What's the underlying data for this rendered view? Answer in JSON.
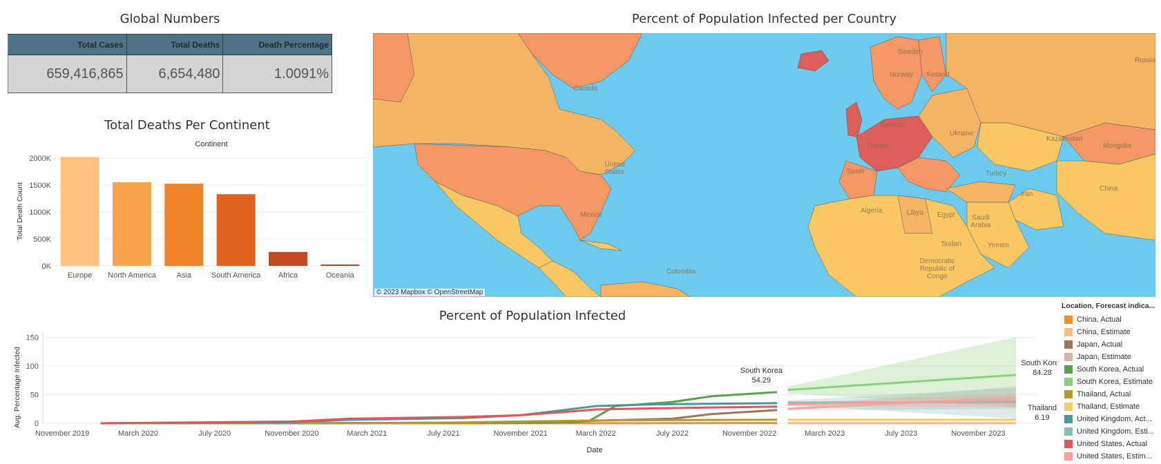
{
  "global": {
    "title": "Global Numbers",
    "headers": [
      "Total Cases",
      "Total Deaths",
      "Death Percentage"
    ],
    "values": [
      "659,416,865",
      "6,654,480",
      "1.0091%"
    ]
  },
  "continent_chart": {
    "title": "Total Deaths Per Continent",
    "subtitle": "Continent",
    "ylabel": "Total Death Count"
  },
  "map": {
    "title": "Percent of Population Infected per Country",
    "attribution": "© 2023 Mapbox  © OpenStreetMap",
    "labels": [
      "Canada",
      "United States",
      "Mexico",
      "Colombia",
      "Sweden",
      "Norway",
      "Finland",
      "France",
      "Spain",
      "German",
      "Ukraine",
      "Turkey",
      "Algeria",
      "Libya",
      "Egypt",
      "Saudi Arabia",
      "Sudan",
      "Yemen",
      "Iran",
      "Kazakhstan",
      "Mongolia",
      "China",
      "Russia",
      "Democratic Republic of Congo"
    ]
  },
  "line_chart": {
    "title": "Percent of Population Infected",
    "xlabel": "Date",
    "ylabel": "Avg. Percentage Infected",
    "annotations": [
      {
        "name": "South Korea",
        "value": "54.29"
      },
      {
        "name": "South Korea",
        "value": "84.28"
      },
      {
        "name": "Thailand",
        "value": "6.19"
      }
    ]
  },
  "legend": {
    "title": "Location, Forecast indica...",
    "items": [
      {
        "label": "China, Actual",
        "color": "#f28e2b"
      },
      {
        "label": "China, Estimate",
        "color": "#ffbe7d"
      },
      {
        "label": "Japan, Actual",
        "color": "#9c755f"
      },
      {
        "label": "Japan, Estimate",
        "color": "#d7b5a6"
      },
      {
        "label": "South Korea, Actual",
        "color": "#59a14f"
      },
      {
        "label": "South Korea, Estimate",
        "color": "#8cd17d"
      },
      {
        "label": "Thailand, Actual",
        "color": "#b6992d"
      },
      {
        "label": "Thailand, Estimate",
        "color": "#f1ce63"
      },
      {
        "label": "United Kingdom, Act...",
        "color": "#499894"
      },
      {
        "label": "United Kingdom, Esti...",
        "color": "#86bcb6"
      },
      {
        "label": "United States, Actual",
        "color": "#e15759"
      },
      {
        "label": "United States, Estim...",
        "color": "#ff9d9a"
      }
    ]
  },
  "chart_data": [
    {
      "type": "bar",
      "title": "Total Deaths Per Continent",
      "subtitle": "Continent",
      "ylabel": "Total Death Count",
      "categories": [
        "Europe",
        "North America",
        "Asia",
        "South America",
        "Africa",
        "Oceania"
      ],
      "values": [
        2020000,
        1550000,
        1525000,
        1330000,
        258000,
        24000
      ],
      "colors": [
        "#fdc27d",
        "#f6a54a",
        "#f0842b",
        "#e2611f",
        "#c24a22",
        "#a8402a"
      ],
      "yticks": [
        0,
        500000,
        1000000,
        1500000,
        2000000
      ],
      "ytick_labels": [
        "0K",
        "500K",
        "1000K",
        "1500K",
        "2000K"
      ],
      "ylim": [
        0,
        2050000
      ]
    },
    {
      "type": "line",
      "title": "Percent of Population Infected",
      "xlabel": "Date",
      "ylabel": "Avg. Percentage Infected",
      "xlim": [
        "2019-10-01",
        "2024-02-01"
      ],
      "ylim": [
        0,
        160
      ],
      "yticks": [
        0,
        50,
        100,
        150
      ],
      "xticks": [
        {
          "date": "2019-11-01",
          "label": "November 2019"
        },
        {
          "date": "2020-03-01",
          "label": "March 2020"
        },
        {
          "date": "2020-07-01",
          "label": "July 2020"
        },
        {
          "date": "2020-11-01",
          "label": "November 2020"
        },
        {
          "date": "2021-03-01",
          "label": "March 2021"
        },
        {
          "date": "2021-07-01",
          "label": "July 2021"
        },
        {
          "date": "2021-11-01",
          "label": "November 2021"
        },
        {
          "date": "2022-03-01",
          "label": "March 2022"
        },
        {
          "date": "2022-07-01",
          "label": "July 2022"
        },
        {
          "date": "2022-11-01",
          "label": "November 2022"
        },
        {
          "date": "2023-03-01",
          "label": "March 2023"
        },
        {
          "date": "2023-07-01",
          "label": "July 2023"
        },
        {
          "date": "2023-11-01",
          "label": "November 2023"
        }
      ],
      "series": [
        {
          "name": "China, Actual",
          "color": "#f28e2b",
          "points": [
            [
              "2020-01-01",
              0
            ],
            [
              "2021-01-01",
              0
            ],
            [
              "2022-01-01",
              0.1
            ],
            [
              "2022-12-15",
              0.3
            ]
          ]
        },
        {
          "name": "Japan, Actual",
          "color": "#9c755f",
          "points": [
            [
              "2020-01-01",
              0
            ],
            [
              "2021-01-01",
              0.3
            ],
            [
              "2021-09-01",
              1.3
            ],
            [
              "2022-01-01",
              1.6
            ],
            [
              "2022-03-01",
              4.5
            ],
            [
              "2022-07-01",
              8
            ],
            [
              "2022-09-01",
              16
            ],
            [
              "2022-12-15",
              23
            ]
          ]
        },
        {
          "name": "South Korea, Actual",
          "color": "#59a14f",
          "points": [
            [
              "2020-01-01",
              0
            ],
            [
              "2021-01-01",
              0.1
            ],
            [
              "2021-12-01",
              1
            ],
            [
              "2022-02-01",
              2
            ],
            [
              "2022-02-20",
              5
            ],
            [
              "2022-04-01",
              30
            ],
            [
              "2022-07-01",
              37
            ],
            [
              "2022-09-01",
              47
            ],
            [
              "2022-12-15",
              54.29
            ]
          ]
        },
        {
          "name": "Thailand, Actual",
          "color": "#b6992d",
          "points": [
            [
              "2020-01-01",
              0
            ],
            [
              "2021-06-01",
              0.5
            ],
            [
              "2021-11-01",
              3
            ],
            [
              "2022-03-01",
              5
            ],
            [
              "2022-12-15",
              6.19
            ]
          ]
        },
        {
          "name": "United Kingdom, Actual",
          "color": "#499894",
          "points": [
            [
              "2020-01-01",
              0
            ],
            [
              "2020-11-01",
              2
            ],
            [
              "2021-02-01",
              6
            ],
            [
              "2021-08-01",
              9
            ],
            [
              "2021-11-01",
              14
            ],
            [
              "2022-01-01",
              22
            ],
            [
              "2022-03-01",
              30
            ],
            [
              "2022-06-01",
              33
            ],
            [
              "2022-12-15",
              35
            ]
          ]
        },
        {
          "name": "United States, Actual",
          "color": "#e15759",
          "points": [
            [
              "2020-01-01",
              0
            ],
            [
              "2020-11-01",
              3
            ],
            [
              "2021-02-01",
              8
            ],
            [
              "2021-08-01",
              11
            ],
            [
              "2021-11-01",
              14
            ],
            [
              "2022-01-01",
              19
            ],
            [
              "2022-03-01",
              24
            ],
            [
              "2022-06-01",
              26
            ],
            [
              "2022-12-15",
              29
            ]
          ]
        },
        {
          "name": "China, Estimate",
          "color": "#ffbe7d",
          "points": [
            [
              "2023-01-01",
              0.3
            ],
            [
              "2023-12-31",
              0.3
            ]
          ]
        },
        {
          "name": "Japan, Estimate",
          "color": "#d7b5a6",
          "points": [
            [
              "2023-01-01",
              25
            ],
            [
              "2023-12-31",
              45
            ]
          ]
        },
        {
          "name": "South Korea, Estimate",
          "color": "#8cd17d",
          "points": [
            [
              "2023-01-01",
              58
            ],
            [
              "2023-12-31",
              84.28
            ]
          ]
        },
        {
          "name": "Thailand, Estimate",
          "color": "#f1ce63",
          "points": [
            [
              "2023-01-01",
              6.2
            ],
            [
              "2023-12-31",
              6.19
            ]
          ]
        },
        {
          "name": "United Kingdom, Estimate",
          "color": "#86bcb6",
          "points": [
            [
              "2023-01-01",
              36
            ],
            [
              "2023-12-31",
              37
            ]
          ]
        },
        {
          "name": "United States, Estimate",
          "color": "#ff9d9a",
          "points": [
            [
              "2023-01-01",
              33
            ],
            [
              "2023-12-31",
              40
            ]
          ]
        }
      ],
      "bands": [
        {
          "name": "South Korea, Estimate",
          "color": "#8cd17d",
          "lower": [
            [
              "2023-01-01",
              52
            ],
            [
              "2023-12-31",
              28
            ]
          ],
          "upper": [
            [
              "2023-01-01",
              64
            ],
            [
              "2023-12-31",
              150
            ]
          ]
        },
        {
          "name": "Japan, Estimate",
          "color": "#d7b5a6",
          "lower": [
            [
              "2023-01-01",
              22
            ],
            [
              "2023-12-31",
              25
            ]
          ],
          "upper": [
            [
              "2023-01-01",
              28
            ],
            [
              "2023-12-31",
              65
            ]
          ]
        },
        {
          "name": "United Kingdom, Estimate",
          "color": "#86bcb6",
          "lower": [
            [
              "2023-01-01",
              32
            ],
            [
              "2023-12-31",
              8
            ]
          ],
          "upper": [
            [
              "2023-01-01",
              40
            ],
            [
              "2023-12-31",
              62
            ]
          ]
        },
        {
          "name": "United States, Estimate",
          "color": "#ff9d9a",
          "lower": [
            [
              "2023-01-01",
              30
            ],
            [
              "2023-12-31",
              28
            ]
          ],
          "upper": [
            [
              "2023-01-01",
              36
            ],
            [
              "2023-12-31",
              52
            ]
          ]
        }
      ]
    }
  ]
}
